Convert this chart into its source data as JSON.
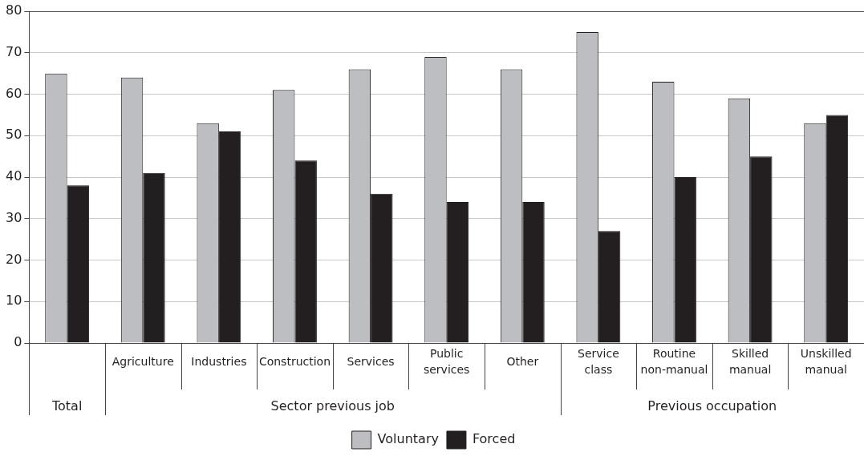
{
  "chart_data": {
    "type": "bar",
    "categories": [
      null,
      "Agriculture",
      "Industries",
      "Construction",
      "Services",
      "Public services",
      "Other",
      "Service class",
      "Routine non-manual",
      "Skilled manual",
      "Unskilled manual"
    ],
    "series": [
      {
        "name": "Voluntary",
        "color": "#bdbec2",
        "values": [
          65,
          64,
          53,
          61,
          66,
          69,
          66,
          75,
          63,
          59,
          53
        ]
      },
      {
        "name": "Forced",
        "color": "#231f20",
        "values": [
          38,
          41,
          51,
          44,
          36,
          34,
          34,
          27,
          40,
          45,
          55
        ]
      }
    ],
    "annotations": [
      "Total",
      "Sector previous job",
      "Previous occupation"
    ],
    "ylim": [
      0,
      80
    ],
    "yticks": [
      0,
      10,
      20,
      30,
      40,
      50,
      60,
      70,
      80
    ],
    "grid": "y",
    "legend": "bottom"
  }
}
